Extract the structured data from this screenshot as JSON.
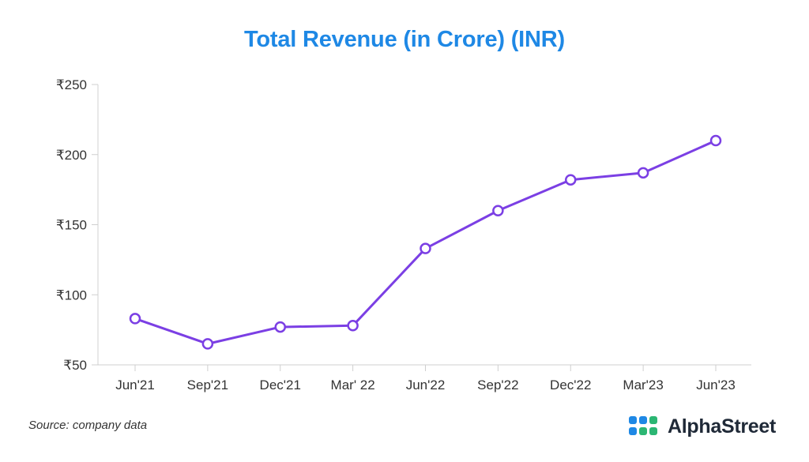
{
  "chart_data": {
    "type": "line",
    "title": "Total Revenue (in Crore) (INR)",
    "xlabel": "",
    "ylabel": "",
    "categories": [
      "Jun'21",
      "Sep'21",
      "Dec'21",
      "Mar' 22",
      "Jun'22",
      "Sep'22",
      "Dec'22",
      "Mar'23",
      "Jun'23"
    ],
    "series": [
      {
        "name": "Total Revenue",
        "values": [
          83,
          65,
          77,
          78,
          133,
          160,
          182,
          187,
          210
        ]
      }
    ],
    "ylim": [
      50,
      250
    ],
    "yticks": [
      50,
      100,
      150,
      200,
      250
    ],
    "ytick_labels": [
      "₹50",
      "₹100",
      "₹150",
      "₹200",
      "₹250"
    ],
    "line_color": "#7b3fe4",
    "grid": false
  },
  "footer": {
    "source": "Source: company data",
    "brand": "AlphaStreet"
  },
  "colors": {
    "title": "#1e88e5",
    "logo_blue": "#1e88e5",
    "logo_green": "#2bb673"
  }
}
